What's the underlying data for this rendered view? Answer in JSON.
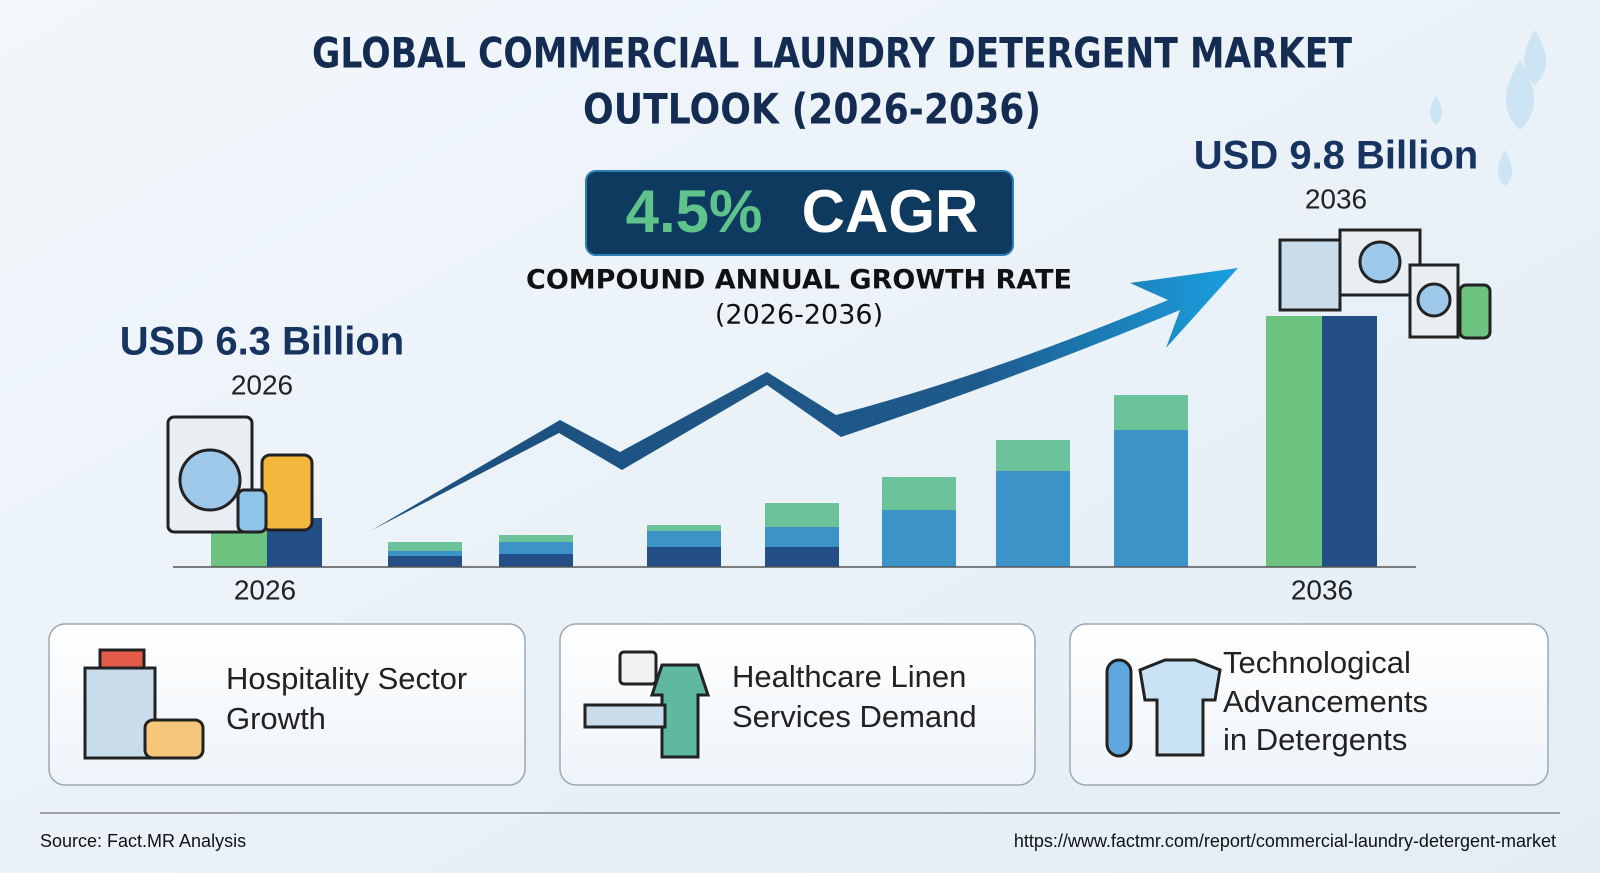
{
  "header": {
    "title_lines": [
      "GLOBAL COMMERCIAL LAUNDRY DETERGENT MARKET",
      "OUTLOOK (2026-2036)"
    ]
  },
  "cagr": {
    "value": "4.5%",
    "label": "CAGR",
    "caption": "COMPOUND ANNUAL GROWTH RATE",
    "period": "(2026-2036)"
  },
  "start": {
    "amount": "USD 6.3 Billion",
    "year": "2026",
    "axis_label": "2026"
  },
  "end": {
    "amount": "USD 9.8 Billion",
    "year": "2036",
    "axis_label": "2036"
  },
  "factors": [
    {
      "lines": [
        "Hospitality Sector",
        "Growth"
      ]
    },
    {
      "lines": [
        "Healthcare Linen",
        "Services Demand"
      ]
    },
    {
      "lines": [
        "Technological",
        "Advancements",
        "in Detergents"
      ]
    }
  ],
  "footer": {
    "source": "Source: Fact.MR Analysis",
    "url": "https://www.factmr.com/report/commercial-laundry-detergent-market"
  }
}
